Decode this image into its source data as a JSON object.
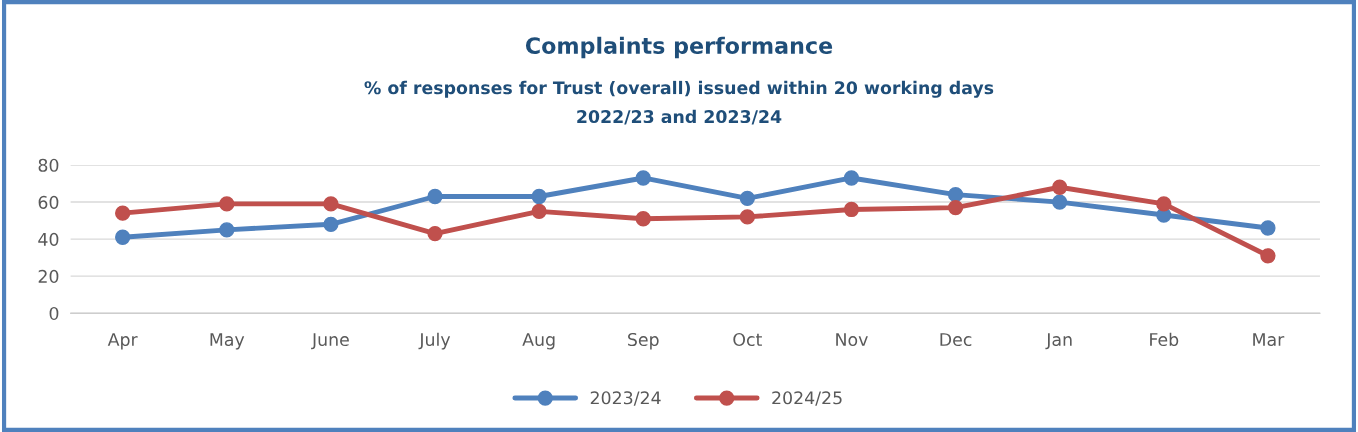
{
  "chart_data": {
    "type": "line",
    "title": "Complaints performance",
    "subtitle": "% of responses for Trust (overall) issued within 20 working days\n2022/23 and 2023/24",
    "categories": [
      "Apr",
      "May",
      "June",
      "July",
      "Aug",
      "Sep",
      "Oct",
      "Nov",
      "Dec",
      "Jan",
      "Feb",
      "Mar"
    ],
    "series": [
      {
        "name": "2023/24",
        "color": "#4f81bd",
        "values": [
          41,
          45,
          48,
          63,
          63,
          73,
          62,
          73,
          64,
          60,
          53,
          46
        ]
      },
      {
        "name": "2024/25",
        "color": "#c0504d",
        "values": [
          54,
          59,
          59,
          43,
          55,
          51,
          52,
          56,
          57,
          68,
          59,
          31
        ]
      }
    ],
    "ylim": [
      0,
      80
    ],
    "yticks": [
      0,
      20,
      40,
      60,
      80
    ],
    "grid": "y",
    "legend": "bottom",
    "marker": "circle",
    "line_style": "solid"
  }
}
